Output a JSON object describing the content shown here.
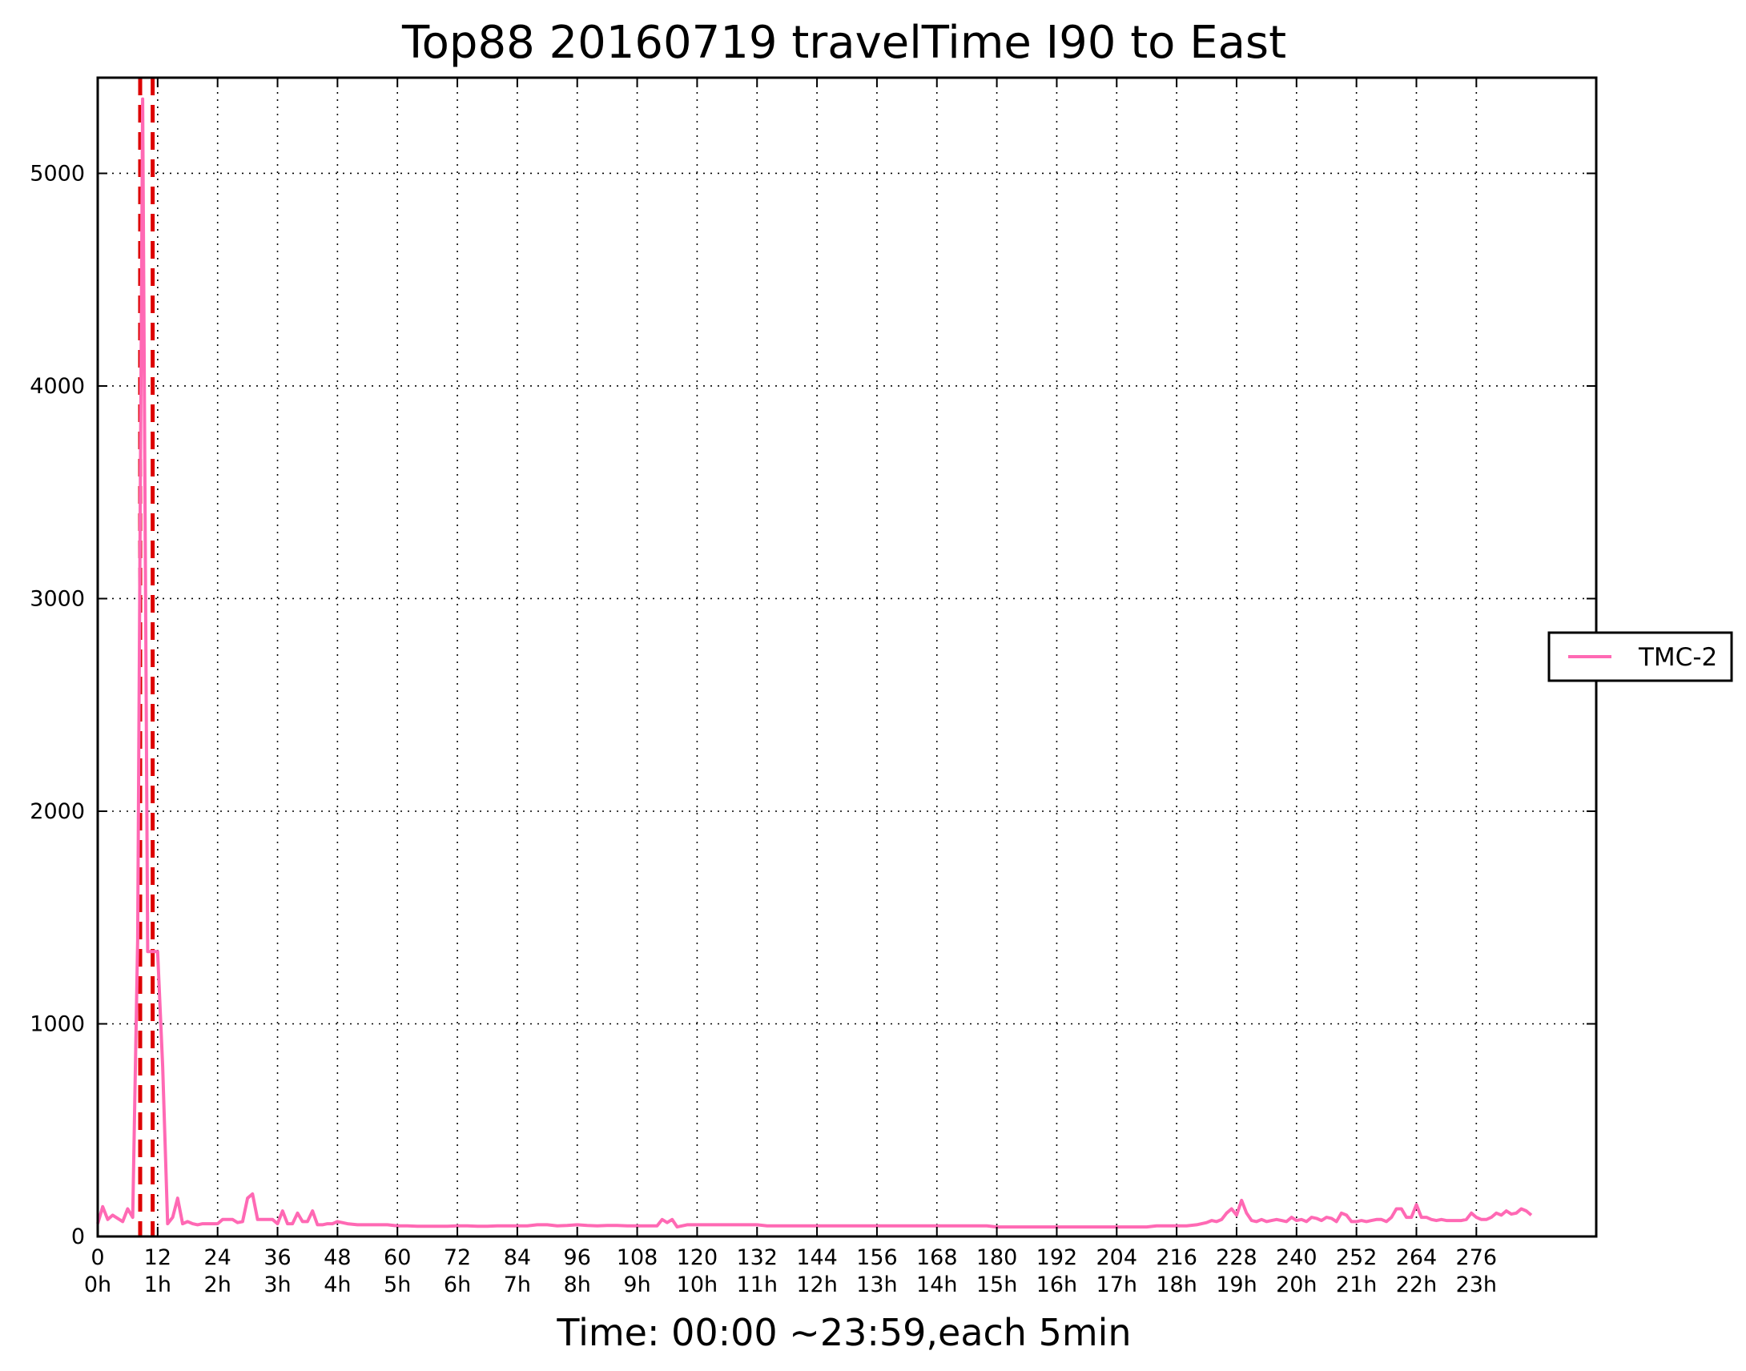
{
  "chart_data": {
    "type": "line",
    "title": "Top88 20160719 travelTime I90 to East",
    "xlabel": "Time: 00:00 ~23:59,each 5min",
    "ylabel": "",
    "xlim": [
      0,
      300
    ],
    "ylim": [
      0,
      5450
    ],
    "grid": true,
    "legend_position": "center-right-outside",
    "x_ticks": [
      0,
      12,
      24,
      36,
      48,
      60,
      72,
      84,
      96,
      108,
      120,
      132,
      144,
      156,
      168,
      180,
      192,
      204,
      216,
      228,
      240,
      252,
      264,
      276
    ],
    "x_tick_labels": [
      "0",
      "12",
      "24",
      "36",
      "48",
      "60",
      "72",
      "84",
      "96",
      "108",
      "120",
      "132",
      "144",
      "156",
      "168",
      "180",
      "192",
      "204",
      "216",
      "228",
      "240",
      "252",
      "264",
      "276"
    ],
    "x_tick_hours": [
      "0h",
      "1h",
      "2h",
      "3h",
      "4h",
      "5h",
      "6h",
      "7h",
      "8h",
      "9h",
      "10h",
      "11h",
      "12h",
      "13h",
      "14h",
      "15h",
      "16h",
      "17h",
      "18h",
      "19h",
      "20h",
      "21h",
      "22h",
      "23h"
    ],
    "y_ticks": [
      0,
      1000,
      2000,
      3000,
      4000,
      5000
    ],
    "y_tick_labels": [
      "0",
      "1000",
      "2000",
      "3000",
      "4000",
      "5000"
    ],
    "series": [
      {
        "name": "TMC-2",
        "color": "#ff69b4",
        "x": [
          0,
          1,
          2,
          3,
          4,
          5,
          6,
          7,
          8,
          9,
          10,
          11,
          12,
          13,
          14,
          15,
          16,
          17,
          18,
          19,
          20,
          21,
          22,
          23,
          24,
          25,
          26,
          27,
          28,
          29,
          30,
          31,
          32,
          33,
          34,
          35,
          36,
          37,
          38,
          39,
          40,
          41,
          42,
          43,
          44,
          45,
          46,
          47,
          48,
          50,
          52,
          54,
          56,
          58,
          60,
          62,
          64,
          66,
          68,
          70,
          72,
          74,
          76,
          78,
          80,
          82,
          84,
          86,
          88,
          90,
          92,
          94,
          96,
          98,
          100,
          102,
          104,
          106,
          108,
          110,
          112,
          113,
          114,
          115,
          116,
          118,
          120,
          122,
          124,
          126,
          128,
          130,
          132,
          134,
          136,
          138,
          140,
          142,
          144,
          146,
          148,
          150,
          152,
          154,
          156,
          158,
          160,
          162,
          164,
          166,
          168,
          170,
          172,
          174,
          176,
          178,
          180,
          182,
          184,
          186,
          188,
          190,
          192,
          194,
          196,
          198,
          200,
          202,
          204,
          206,
          208,
          210,
          212,
          214,
          216,
          218,
          220,
          221,
          222,
          223,
          224,
          225,
          226,
          227,
          228,
          229,
          230,
          231,
          232,
          233,
          234,
          235,
          236,
          237,
          238,
          239,
          240,
          241,
          242,
          243,
          244,
          245,
          246,
          247,
          248,
          249,
          250,
          251,
          252,
          253,
          254,
          255,
          256,
          257,
          258,
          259,
          260,
          261,
          262,
          263,
          264,
          265,
          266,
          267,
          268,
          269,
          270,
          271,
          272,
          273,
          274,
          275,
          276,
          277,
          278,
          279,
          280,
          281,
          282,
          283,
          284,
          285,
          286,
          287
        ],
        "values": [
          60,
          140,
          80,
          100,
          85,
          70,
          130,
          90,
          1400,
          5350,
          1340,
          1340,
          1340,
          800,
          60,
          90,
          180,
          60,
          70,
          60,
          55,
          60,
          60,
          60,
          60,
          80,
          80,
          80,
          65,
          70,
          180,
          200,
          80,
          80,
          80,
          80,
          60,
          120,
          60,
          60,
          110,
          70,
          70,
          120,
          55,
          55,
          60,
          60,
          70,
          60,
          55,
          55,
          55,
          55,
          50,
          50,
          48,
          48,
          48,
          48,
          50,
          50,
          48,
          48,
          50,
          50,
          50,
          50,
          55,
          55,
          50,
          52,
          55,
          52,
          50,
          52,
          52,
          50,
          50,
          50,
          50,
          80,
          65,
          80,
          45,
          55,
          55,
          55,
          55,
          55,
          55,
          55,
          55,
          50,
          50,
          50,
          50,
          50,
          50,
          50,
          50,
          50,
          50,
          50,
          50,
          50,
          50,
          50,
          50,
          50,
          50,
          50,
          50,
          50,
          50,
          50,
          45,
          45,
          45,
          45,
          45,
          45,
          45,
          45,
          45,
          45,
          45,
          45,
          45,
          45,
          45,
          45,
          50,
          50,
          50,
          50,
          55,
          60,
          65,
          75,
          70,
          80,
          110,
          130,
          100,
          170,
          110,
          75,
          70,
          80,
          70,
          75,
          80,
          75,
          70,
          90,
          75,
          80,
          70,
          90,
          85,
          75,
          90,
          85,
          70,
          110,
          100,
          70,
          70,
          75,
          70,
          75,
          80,
          80,
          70,
          90,
          130,
          130,
          90,
          90,
          150,
          90,
          90,
          80,
          75,
          80,
          75,
          75,
          75,
          75,
          80,
          110,
          90,
          80,
          80,
          90,
          110,
          100,
          120,
          105,
          110,
          130,
          120,
          100
        ]
      }
    ],
    "vlines": [
      {
        "x": 8.5,
        "style": "dashed",
        "color": "#dd0000"
      },
      {
        "x": 11,
        "style": "dashed",
        "color": "#dd0000"
      }
    ]
  }
}
